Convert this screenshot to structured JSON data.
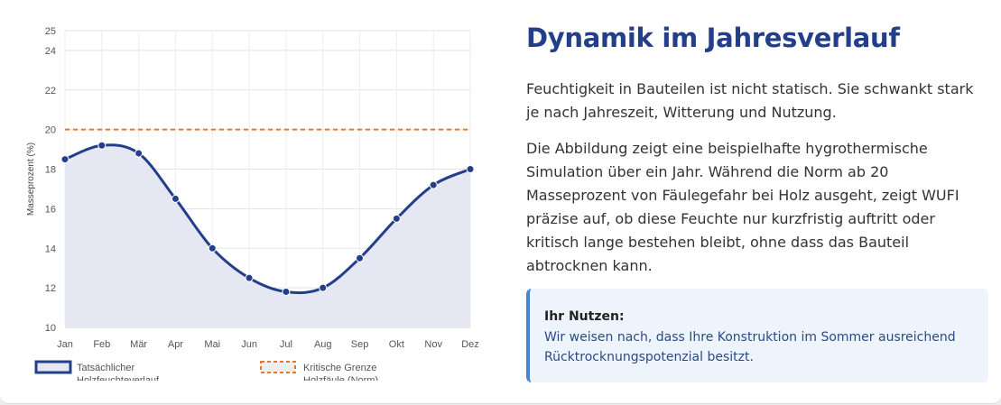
{
  "chart_data": {
    "type": "line",
    "ylabel": "Masseprozent (%)",
    "ylim": [
      10,
      25
    ],
    "y_ticks": [
      10,
      12,
      14,
      16,
      18,
      20,
      22,
      24,
      25
    ],
    "categories": [
      "Jan",
      "Feb",
      "Mär",
      "Apr",
      "Mai",
      "Jun",
      "Jul",
      "Aug",
      "Sep",
      "Okt",
      "Nov",
      "Dez"
    ],
    "grid": true,
    "legend_position": "bottom",
    "series": [
      {
        "name": "Tatsächlicher Holzfeuchteverlauf",
        "values": [
          18.5,
          19.2,
          18.8,
          16.5,
          14.0,
          12.5,
          11.8,
          12.0,
          13.5,
          15.5,
          17.2,
          18.0
        ],
        "color": "#233f8a",
        "fill": "#e5e8f3"
      },
      {
        "name": "Kritische Grenze Holzfäule (Norm)",
        "values": [
          20,
          20,
          20,
          20,
          20,
          20,
          20,
          20,
          20,
          20,
          20,
          20
        ],
        "color": "#e8772e",
        "style": "dashed"
      }
    ]
  },
  "content": {
    "heading": "Dynamik im Jahresverlauf",
    "paragraph1": "Feuchtigkeit in Bauteilen ist nicht statisch. Sie schwankt stark je nach Jahreszeit, Witterung und Nutzung.",
    "paragraph2": "Die Abbildung zeigt eine beispielhafte hygrothermische Simulation über ein Jahr. Während die Norm ab 20 Masseprozent von Fäulegefahr bei Holz ausgeht, zeigt WUFI präzise auf, ob diese Feuchte nur kurzfristig auftritt oder kritisch lange bestehen bleibt, ohne dass das Bauteil abtrocknen kann.",
    "callout_title": "Ihr Nutzen:",
    "callout_text": "Wir weisen nach, dass Ihre Konstruktion im Sommer ausreichend Rücktrocknungspotenzial besitzt."
  },
  "colors": {
    "accent": "#233f8a",
    "critical": "#e8772e",
    "callout_border": "#4a86d0"
  }
}
